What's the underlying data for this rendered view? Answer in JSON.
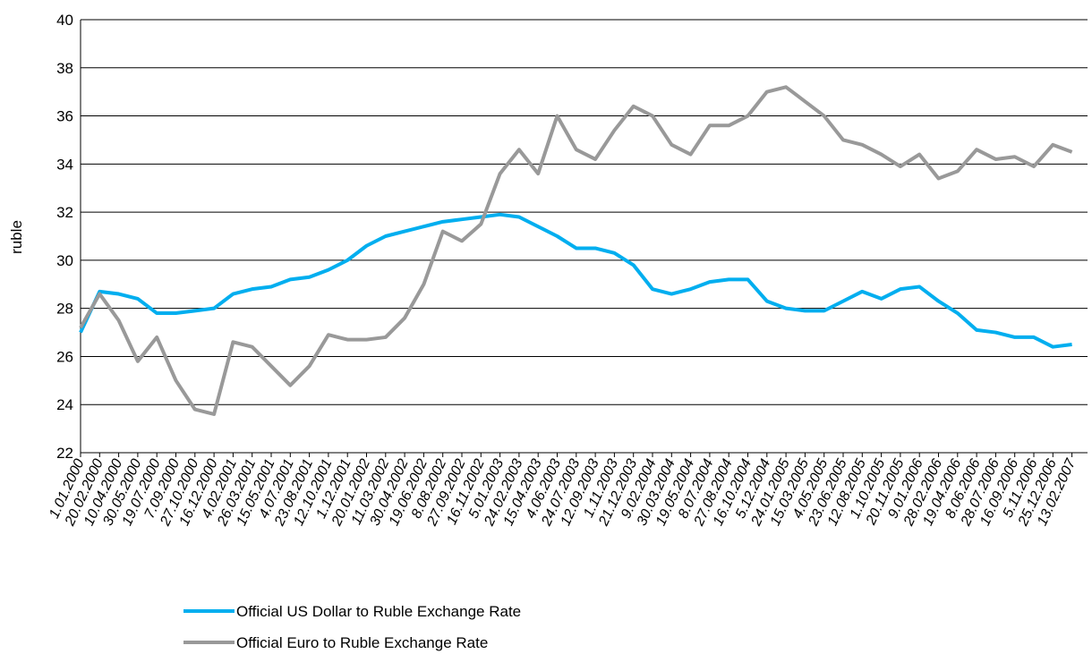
{
  "chart_data": {
    "type": "line",
    "y_label": "ruble",
    "categories": [
      "1.01.2000",
      "20.02.2000",
      "10.04.2000",
      "30.05.2000",
      "19.07.2000",
      "7.09.2000",
      "27.10.2000",
      "16.12.2000",
      "4.02.2001",
      "26.03.2001",
      "15.05.2001",
      "4.07.2001",
      "23.08.2001",
      "12.10.2001",
      "1.12.2001",
      "20.01.2002",
      "11.03.2002",
      "30.04.2002",
      "19.06.2002",
      "8.08.2002",
      "27.09.2002",
      "16.11.2002",
      "5.01.2003",
      "24.02.2003",
      "15.04.2003",
      "4.06.2003",
      "24.07.2003",
      "12.09.2003",
      "1.11.2003",
      "21.12.2003",
      "9.02.2004",
      "30.03.2004",
      "19.05.2004",
      "8.07.2004",
      "27.08.2004",
      "16.10.2004",
      "5.12.2004",
      "24.01.2005",
      "15.03.2005",
      "4.05.2005",
      "23.06.2005",
      "12.08.2005",
      "1.10.2005",
      "20.11.2005",
      "9.01.2006",
      "28.02.2006",
      "19.04.2006",
      "8.06.2006",
      "28.07.2006",
      "16.09.2006",
      "5.11.2006",
      "25.12.2006",
      "13.02.2007"
    ],
    "series": [
      {
        "name": "Official US Dollar to Ruble Exchange Rate",
        "color": "#00aeef",
        "values": [
          27.0,
          28.7,
          28.6,
          28.4,
          27.8,
          27.8,
          27.9,
          28.0,
          28.6,
          28.8,
          28.9,
          29.2,
          29.3,
          29.6,
          30.0,
          30.6,
          31.0,
          31.2,
          31.4,
          31.6,
          31.7,
          31.8,
          31.9,
          31.8,
          31.4,
          31.0,
          30.5,
          30.5,
          30.3,
          29.8,
          28.8,
          28.6,
          28.8,
          29.1,
          29.2,
          29.2,
          28.3,
          28.0,
          27.9,
          27.9,
          28.3,
          28.7,
          28.4,
          28.8,
          28.9,
          28.3,
          27.8,
          27.1,
          27.0,
          26.8,
          26.8,
          26.4,
          26.5
        ]
      },
      {
        "name": "Official Euro to Ruble Exchange Rate",
        "color": "#999999",
        "values": [
          27.2,
          28.6,
          27.5,
          25.8,
          26.8,
          25.0,
          23.8,
          23.6,
          26.6,
          26.4,
          25.6,
          24.8,
          25.6,
          26.9,
          26.7,
          26.7,
          26.8,
          27.6,
          29.0,
          31.2,
          30.8,
          31.5,
          33.6,
          34.6,
          33.6,
          36.0,
          34.6,
          34.2,
          35.4,
          36.4,
          36.0,
          34.8,
          34.4,
          35.6,
          35.6,
          36.0,
          37.0,
          37.2,
          36.6,
          36.0,
          35.0,
          34.8,
          34.4,
          33.9,
          34.4,
          33.4,
          33.7,
          34.6,
          34.2,
          34.3,
          33.9,
          34.8,
          34.5
        ]
      }
    ],
    "ylim": [
      22,
      40
    ],
    "yticks": [
      22,
      24,
      26,
      28,
      30,
      32,
      34,
      36,
      38,
      40
    ],
    "grid": true,
    "legend": "bottom"
  }
}
